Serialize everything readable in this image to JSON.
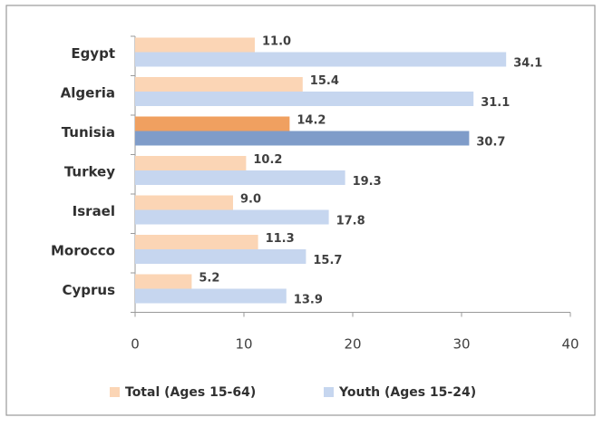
{
  "chart_data": {
    "type": "bar",
    "orientation": "horizontal",
    "categories": [
      "Egypt",
      "Algeria",
      "Tunisia",
      "Turkey",
      "Israel",
      "Morocco",
      "Cyprus"
    ],
    "highlighted_category": "Tunisia",
    "series": [
      {
        "name": "Total (Ages 15-64)",
        "values": [
          11.0,
          15.4,
          14.2,
          10.2,
          9.0,
          11.3,
          5.2
        ],
        "labels": [
          "11.0",
          "15.4",
          "14.2",
          "10.2",
          "9.0",
          "11.3",
          "5.2"
        ],
        "color": "#fbd5b5",
        "highlight_color": "#f0a060"
      },
      {
        "name": "Youth (Ages 15-24)",
        "values": [
          34.1,
          31.1,
          30.7,
          19.3,
          17.8,
          15.7,
          13.9
        ],
        "labels": [
          "34.1",
          "31.1",
          "30.7",
          "19.3",
          "17.8",
          "15.7",
          "13.9"
        ],
        "color": "#c6d6ef",
        "highlight_color": "#7f9cc9"
      }
    ],
    "xlim": [
      0,
      40
    ],
    "xticks": [
      "0",
      "10",
      "20",
      "30",
      "40"
    ],
    "grid": false,
    "legend_position": "bottom",
    "title": "",
    "xlabel": "",
    "ylabel": ""
  }
}
